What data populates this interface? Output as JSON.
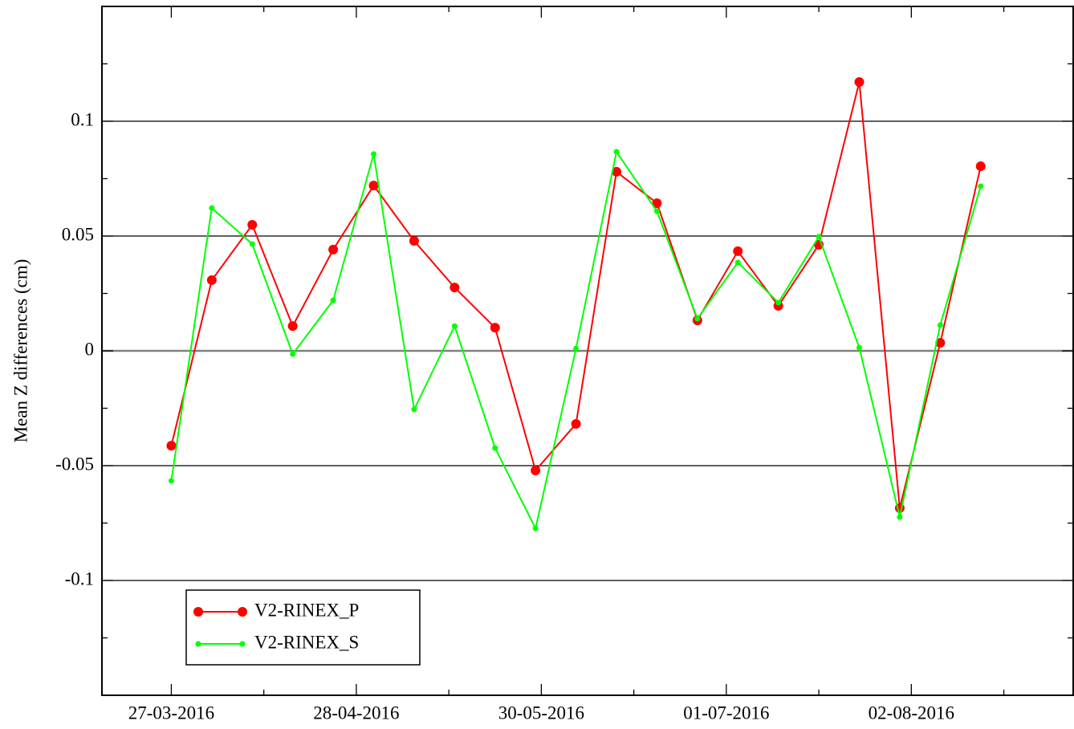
{
  "chart_data": {
    "type": "line",
    "y_label": "Mean Z differences (cm)",
    "x": [
      "2016-03-27",
      "2016-04-03",
      "2016-04-10",
      "2016-04-17",
      "2016-04-24",
      "2016-05-01",
      "2016-05-08",
      "2016-05-15",
      "2016-05-22",
      "2016-05-29",
      "2016-06-05",
      "2016-06-12",
      "2016-06-19",
      "2016-06-26",
      "2016-07-03",
      "2016-07-10",
      "2016-07-17",
      "2016-07-24",
      "2016-07-31",
      "2016-08-07",
      "2016-08-14"
    ],
    "series": [
      {
        "name": "V2-RINEX_P",
        "color": "#ff0000",
        "values": [
          -0.0413,
          0.0308,
          0.0549,
          0.0108,
          0.0441,
          0.072,
          0.0479,
          0.0276,
          0.0101,
          -0.0521,
          -0.0318,
          0.078,
          0.0643,
          0.0133,
          0.0434,
          0.0196,
          0.0462,
          0.1171,
          -0.0685,
          0.0035,
          0.0804
        ]
      },
      {
        "name": "V2-RINEX_S",
        "color": "#00ff00",
        "values": [
          -0.0566,
          0.0622,
          0.0465,
          -0.0014,
          0.022,
          0.0857,
          -0.0255,
          0.0108,
          -0.0423,
          -0.0773,
          0.001,
          0.0867,
          0.0608,
          0.014,
          0.0385,
          0.021,
          0.0497,
          0.0014,
          -0.0724,
          0.0112,
          0.0717
        ]
      }
    ],
    "xlim": [
      "2016-03-15",
      "2016-08-30"
    ],
    "xticks": [
      {
        "value": "2016-03-27",
        "label": "27-03-2016"
      },
      {
        "value": "2016-04-28",
        "label": "28-04-2016"
      },
      {
        "value": "2016-05-30",
        "label": "30-05-2016"
      },
      {
        "value": "2016-07-01",
        "label": "01-07-2016"
      },
      {
        "value": "2016-08-02",
        "label": "02-08-2016"
      }
    ],
    "ylim": [
      -0.15,
      0.15
    ],
    "yticks": [
      -0.1,
      -0.05,
      0,
      0.05,
      0.1
    ],
    "grid": true,
    "legend": "lower left"
  }
}
